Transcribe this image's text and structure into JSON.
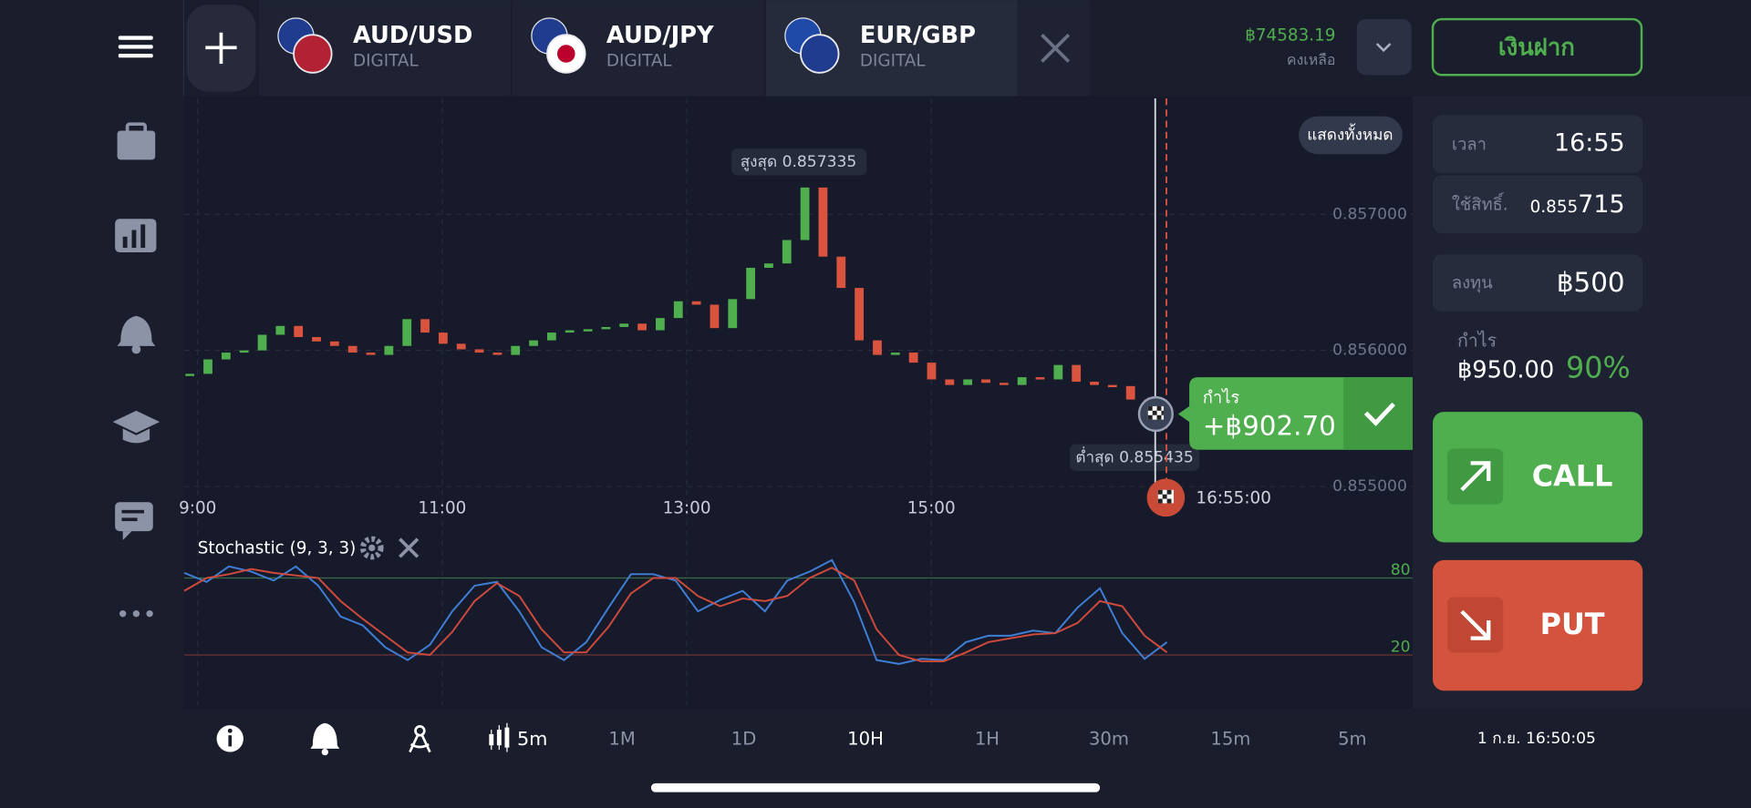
{
  "tabs": [
    {
      "pair": "AUD/USD",
      "kind": "DIGITAL"
    },
    {
      "pair": "AUD/JPY",
      "kind": "DIGITAL"
    },
    {
      "pair": "EUR/GBP",
      "kind": "DIGITAL"
    }
  ],
  "balance": {
    "amount": "฿74583.19",
    "label": "คงเหลือ"
  },
  "deposit_button": "เงินฝาก",
  "chart": {
    "type": "candlestick",
    "show_all": "แสดงทั้งหมด",
    "up_color": "#4fae4e",
    "down_color": "#d9533e",
    "closes": [
      0.855828,
      0.855934,
      0.855984,
      0.856,
      0.856115,
      0.85618,
      0.856098,
      0.856066,
      0.856033,
      0.855984,
      0.855967,
      0.856033,
      0.85623,
      0.856131,
      0.856049,
      0.856008,
      0.855984,
      0.855967,
      0.856033,
      0.856074,
      0.856131,
      0.856148,
      0.856156,
      0.856172,
      0.856197,
      0.856148,
      0.856238,
      0.856361,
      0.856336,
      0.856164,
      0.856377,
      0.856607,
      0.856639,
      0.856811,
      0.857197,
      0.856689,
      0.856459,
      0.856074,
      0.855967,
      0.855984,
      0.85591,
      0.855787,
      0.855746,
      0.855787,
      0.855762,
      0.855746,
      0.855803,
      0.855787,
      0.855893,
      0.85577,
      0.855746,
      0.855738,
      0.855639,
      0.855557
    ],
    "ylim": [
      0.854762,
      0.857852
    ],
    "yticks": [
      {
        "value": 0.857,
        "label": "0.857000"
      },
      {
        "value": 0.856,
        "label": "0.856000"
      },
      {
        "value": 0.855,
        "label": "0.855000"
      }
    ],
    "time_labels": [
      "9:00",
      "11:00",
      "13:00",
      "15:00"
    ],
    "high": "สูงสุด 0.857335",
    "low": "ต่ำสุด 0.855435",
    "expiry": "16:55:00",
    "profit_bubble": {
      "label": "กำไร",
      "amount": "+฿902.70"
    }
  },
  "indicator": {
    "name": "Stochastic (9, 3, 3)",
    "ylim": [
      0,
      100
    ],
    "levels": [
      80,
      20
    ],
    "series": [
      {
        "color": "#3f7fd6",
        "values": [
          84,
          77,
          89,
          85,
          78,
          89,
          74,
          50,
          43,
          26,
          16,
          28,
          54,
          74,
          77,
          54,
          26,
          16,
          30,
          57,
          83,
          83,
          78,
          54,
          63,
          70,
          54,
          78,
          85,
          94,
          61,
          16,
          13,
          17,
          16,
          30,
          35,
          35,
          39,
          37,
          57,
          72,
          37,
          17,
          30
        ]
      },
      {
        "color": "#d04a3c",
        "values": [
          70,
          80,
          83,
          87,
          84,
          82,
          80,
          62,
          48,
          35,
          22,
          20,
          38,
          62,
          76,
          66,
          40,
          22,
          22,
          42,
          68,
          80,
          80,
          66,
          58,
          64,
          62,
          66,
          80,
          88,
          78,
          40,
          20,
          15,
          15,
          22,
          30,
          33,
          36,
          37,
          45,
          62,
          58,
          35,
          22
        ]
      }
    ]
  },
  "panel": {
    "time_label": "เวลา",
    "time": "16:55",
    "strike_label": "ใช้สิทธิ์.",
    "strike_prefix": "0.855",
    "strike_suffix": "715",
    "invest_label": "ลงทุน",
    "invest": "฿500",
    "profit_label": "กำไร",
    "profit": "฿950.00",
    "percent": "90%",
    "call": "CALL",
    "put": "PUT"
  },
  "toolbar": {
    "candle_period": "5m",
    "timeframes": [
      "1M",
      "1D",
      "10H",
      "1H",
      "30m",
      "15m",
      "5m"
    ],
    "datetime": "1 ก.ย. 16:50:05"
  }
}
